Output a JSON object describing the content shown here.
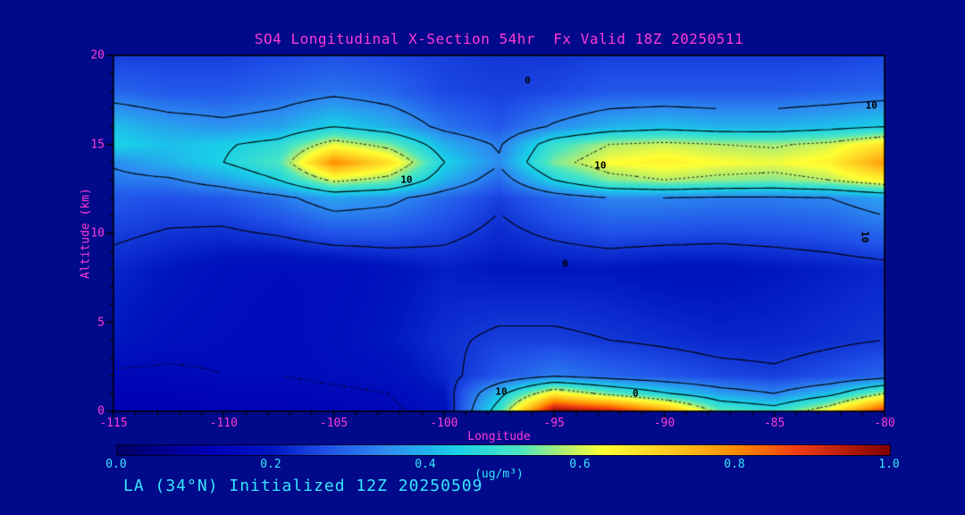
{
  "chart_data": {
    "type": "heatmap",
    "title": "SO4 Longitudinal X-Section 54hr  Fx Valid 18Z 20250511",
    "xlabel": "Longitude",
    "ylabel": "Altitude (km)",
    "footer": "LA (34°N) Initialized 12Z 20250509",
    "xlim": [
      -115,
      -80
    ],
    "ylim": [
      0,
      20
    ],
    "x_ticks": [
      -115,
      -110,
      -105,
      -100,
      -95,
      -90,
      -85,
      -80
    ],
    "y_ticks": [
      0,
      5,
      10,
      15,
      20
    ],
    "lons": [
      -115,
      -112.5,
      -110,
      -107.5,
      -105,
      -102.5,
      -100,
      -97.5,
      -95,
      -92.5,
      -90,
      -87.5,
      -85,
      -82.5,
      -80
    ],
    "alts": [
      0,
      1,
      2,
      4,
      8,
      12,
      13,
      14,
      15,
      16,
      18,
      20
    ],
    "values": [
      [
        0.12,
        0.12,
        0.13,
        0.13,
        0.14,
        0.15,
        0.18,
        0.5,
        1.0,
        0.95,
        0.8,
        0.55,
        0.5,
        0.65,
        0.92
      ],
      [
        0.13,
        0.13,
        0.14,
        0.14,
        0.15,
        0.16,
        0.2,
        0.42,
        0.66,
        0.55,
        0.46,
        0.38,
        0.34,
        0.42,
        0.58
      ],
      [
        0.15,
        0.15,
        0.16,
        0.16,
        0.17,
        0.18,
        0.22,
        0.28,
        0.33,
        0.3,
        0.28,
        0.26,
        0.25,
        0.27,
        0.3
      ],
      [
        0.2,
        0.18,
        0.17,
        0.16,
        0.18,
        0.2,
        0.23,
        0.25,
        0.25,
        0.24,
        0.23,
        0.22,
        0.22,
        0.23,
        0.24
      ],
      [
        0.22,
        0.2,
        0.18,
        0.17,
        0.17,
        0.19,
        0.21,
        0.2,
        0.2,
        0.2,
        0.19,
        0.19,
        0.2,
        0.21,
        0.22
      ],
      [
        0.28,
        0.27,
        0.28,
        0.32,
        0.38,
        0.36,
        0.3,
        0.25,
        0.3,
        0.34,
        0.34,
        0.33,
        0.33,
        0.34,
        0.38
      ],
      [
        0.32,
        0.33,
        0.38,
        0.45,
        0.6,
        0.55,
        0.4,
        0.3,
        0.45,
        0.55,
        0.58,
        0.56,
        0.55,
        0.58,
        0.65
      ],
      [
        0.35,
        0.4,
        0.45,
        0.52,
        0.8,
        0.68,
        0.45,
        0.35,
        0.55,
        0.63,
        0.65,
        0.63,
        0.62,
        0.65,
        0.78
      ],
      [
        0.45,
        0.42,
        0.44,
        0.48,
        0.62,
        0.55,
        0.4,
        0.33,
        0.5,
        0.58,
        0.6,
        0.58,
        0.57,
        0.6,
        0.68
      ],
      [
        0.42,
        0.38,
        0.36,
        0.38,
        0.45,
        0.4,
        0.32,
        0.28,
        0.35,
        0.4,
        0.42,
        0.4,
        0.4,
        0.42,
        0.45
      ],
      [
        0.3,
        0.28,
        0.28,
        0.3,
        0.32,
        0.3,
        0.26,
        0.25,
        0.26,
        0.28,
        0.28,
        0.28,
        0.28,
        0.29,
        0.3
      ],
      [
        0.25,
        0.25,
        0.25,
        0.26,
        0.27,
        0.26,
        0.25,
        0.24,
        0.24,
        0.25,
        0.25,
        0.25,
        0.25,
        0.25,
        0.26
      ]
    ],
    "colormap": [
      [
        0.0,
        "#000066"
      ],
      [
        0.12,
        "#0000b4"
      ],
      [
        0.2,
        "#0016bf"
      ],
      [
        0.27,
        "#2050e8"
      ],
      [
        0.35,
        "#2d8df0"
      ],
      [
        0.44,
        "#19cfe8"
      ],
      [
        0.52,
        "#49e6c3"
      ],
      [
        0.58,
        "#b4ee6e"
      ],
      [
        0.63,
        "#ffff33"
      ],
      [
        0.72,
        "#ffc61e"
      ],
      [
        0.8,
        "#ff8c00"
      ],
      [
        0.88,
        "#f03c14"
      ],
      [
        1.0,
        "#800000"
      ]
    ],
    "contours": {
      "solid": [
        0.24,
        0.34,
        0.45
      ],
      "dashed": [
        0.16,
        0.58
      ]
    },
    "contour_labels": [
      {
        "text": "10",
        "lon": -101.7,
        "alt": 13.0
      },
      {
        "text": "10",
        "lon": -92.9,
        "alt": 13.8
      },
      {
        "text": "10",
        "lon": -97.4,
        "alt": 1.1
      },
      {
        "text": "0",
        "lon": -91.3,
        "alt": 1.0
      },
      {
        "text": "10",
        "lon": -80.9,
        "alt": 9.8,
        "rot": 90
      },
      {
        "text": "0",
        "lon": -96.2,
        "alt": 18.6
      },
      {
        "text": "10",
        "lon": -80.6,
        "alt": 17.2
      },
      {
        "text": "0",
        "lon": -94.5,
        "alt": 8.3
      }
    ],
    "colorbar": {
      "ticks": [
        "0.0",
        "0.2",
        "0.4",
        "0.6",
        "0.8",
        "1.0"
      ],
      "label": "(ug/m³)"
    }
  },
  "colors": {
    "background": "#000a8a",
    "title_magenta": "#ff3bd5",
    "cyan_text": "#35e7ff",
    "contour_black": "#000000"
  }
}
